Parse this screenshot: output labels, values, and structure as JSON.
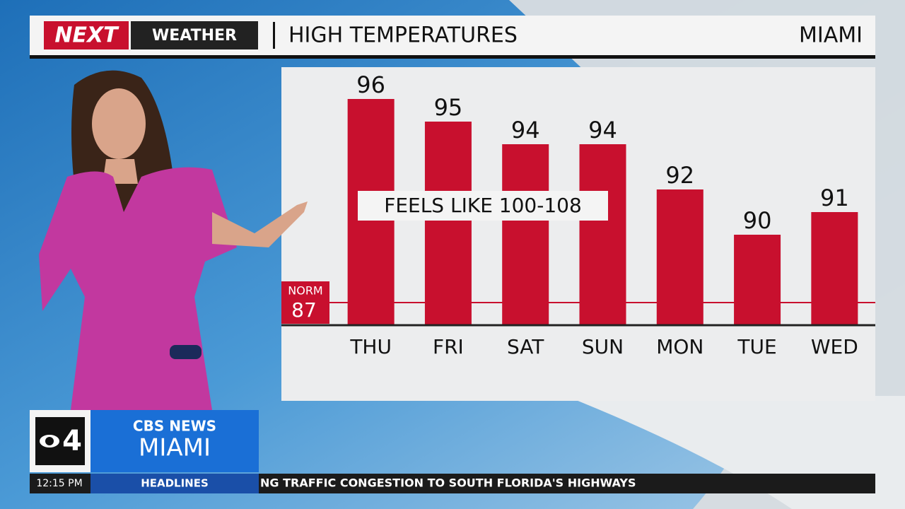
{
  "header": {
    "logo": "NEXT",
    "brand": "WEATHER",
    "title": "HIGH TEMPERATURES",
    "location": "MIAMI"
  },
  "chart_data": {
    "type": "bar",
    "categories": [
      "THU",
      "FRI",
      "SAT",
      "SUN",
      "MON",
      "TUE",
      "WED"
    ],
    "values": [
      96,
      95,
      94,
      94,
      92,
      90,
      91
    ],
    "color": "#c8102e",
    "ylim": [
      86,
      97.5
    ],
    "norm": {
      "label": "NORM",
      "value": 87
    },
    "annotation": "FEELS LIKE 100-108"
  },
  "station": {
    "channel": "4",
    "network": "CBS NEWS",
    "city": "MIAMI"
  },
  "ticker": {
    "time": "12:15 PM",
    "section": "HEADLINES",
    "text": "NG TRAFFIC CONGESTION TO SOUTH FLORIDA'S HIGHWAYS"
  }
}
